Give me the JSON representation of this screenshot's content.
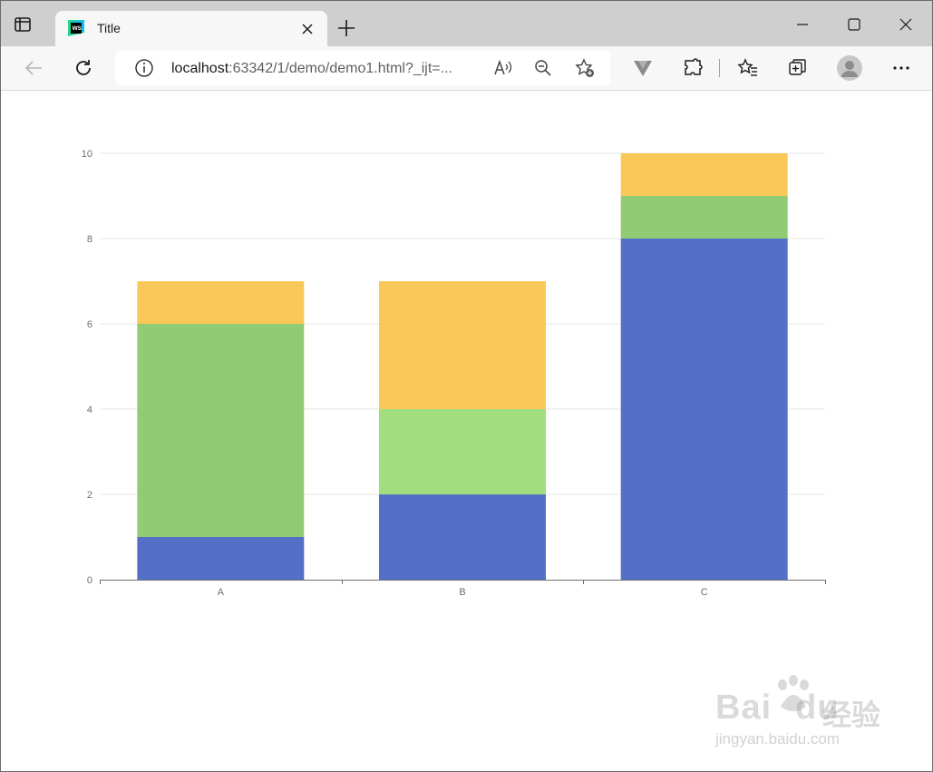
{
  "browser": {
    "tab_title": "Title",
    "url_host": "localhost",
    "url_rest": ":63342/1/demo/demo1.html?_ijt=...",
    "icons": [
      "tab-actions-icon",
      "favicon-icon",
      "close-icon",
      "new-tab-icon",
      "minimize-icon",
      "maximize-icon",
      "window-close-icon",
      "back-icon",
      "refresh-icon",
      "info-icon",
      "read-aloud-icon",
      "zoom-out-icon",
      "add-favorite-icon",
      "extension-v-icon",
      "extensions-icon",
      "favorites-icon",
      "collections-icon",
      "profile-icon",
      "more-icon"
    ]
  },
  "chart_data": {
    "type": "bar",
    "stacked": true,
    "categories": [
      "A",
      "B",
      "C"
    ],
    "series": [
      {
        "color": "#5470c6",
        "values": [
          1,
          2,
          8
        ]
      },
      {
        "color": "#91cc75",
        "values": [
          5,
          2,
          1
        ]
      },
      {
        "color": "#fac858",
        "values": [
          1,
          3,
          1
        ]
      }
    ],
    "series_colors_note_b_green": "#a0de7e",
    "yticks": [
      "0",
      "2",
      "4",
      "6",
      "8",
      "10"
    ],
    "ylim": [
      0,
      10
    ],
    "grid": "horizontal",
    "gridline_color": "#e6e6e6",
    "axis_color": "#6e6e6e"
  },
  "watermark": {
    "brand": "Bai",
    "brand_tail": "du",
    "cn": "经验",
    "sub": "jingyan.baidu.com"
  }
}
